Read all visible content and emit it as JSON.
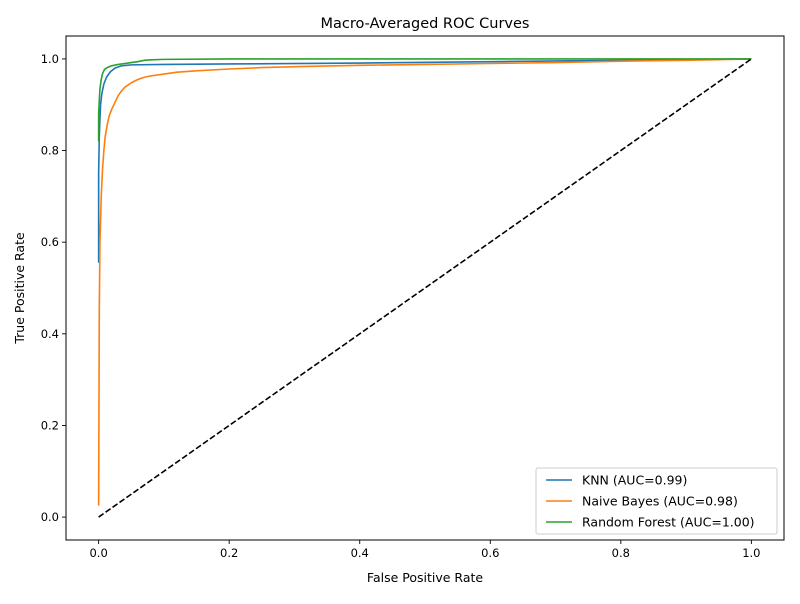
{
  "chart_data": {
    "type": "line",
    "title": "Macro-Averaged ROC Curves",
    "xlabel": "False Positive Rate",
    "ylabel": "True Positive Rate",
    "xlim": [
      -0.05,
      1.05
    ],
    "ylim": [
      -0.05,
      1.05
    ],
    "xticks": [
      0.0,
      0.2,
      0.4,
      0.6,
      0.8,
      1.0
    ],
    "yticks": [
      0.0,
      0.2,
      0.4,
      0.6,
      0.8,
      1.0
    ],
    "xtick_labels": [
      "0.0",
      "0.2",
      "0.4",
      "0.6",
      "0.8",
      "1.0"
    ],
    "ytick_labels": [
      "0.0",
      "0.2",
      "0.4",
      "0.6",
      "0.8",
      "1.0"
    ],
    "grid": false,
    "legend_position": "lower-right",
    "series": [
      {
        "name": "KNN (AUC=0.99)",
        "color": "#1f77b4",
        "x": [
          0.0,
          0.0,
          0.001,
          0.002,
          0.003,
          0.005,
          0.008,
          0.012,
          0.018,
          0.025,
          0.035,
          0.05,
          0.1,
          0.2,
          0.4,
          0.6,
          0.8,
          1.0
        ],
        "y": [
          0.555,
          0.75,
          0.83,
          0.87,
          0.9,
          0.925,
          0.945,
          0.96,
          0.972,
          0.98,
          0.985,
          0.987,
          0.988,
          0.989,
          0.991,
          0.994,
          0.997,
          1.0
        ]
      },
      {
        "name": "Naive Bayes (AUC=0.98)",
        "color": "#ff7f0e",
        "x": [
          0.0,
          0.001,
          0.002,
          0.004,
          0.006,
          0.008,
          0.01,
          0.013,
          0.016,
          0.02,
          0.025,
          0.03,
          0.035,
          0.04,
          0.05,
          0.06,
          0.07,
          0.08,
          0.1,
          0.12,
          0.15,
          0.2,
          0.25,
          0.3,
          0.4,
          0.5,
          0.6,
          0.7,
          0.8,
          0.9,
          1.0
        ],
        "y": [
          0.025,
          0.45,
          0.6,
          0.7,
          0.76,
          0.8,
          0.83,
          0.855,
          0.875,
          0.89,
          0.905,
          0.92,
          0.93,
          0.938,
          0.948,
          0.955,
          0.96,
          0.963,
          0.967,
          0.971,
          0.974,
          0.978,
          0.981,
          0.983,
          0.986,
          0.988,
          0.99,
          0.992,
          0.995,
          0.997,
          1.0
        ]
      },
      {
        "name": "Random Forest (AUC=1.00)",
        "color": "#2ca02c",
        "x": [
          0.0,
          0.0,
          0.001,
          0.002,
          0.004,
          0.006,
          0.009,
          0.013,
          0.02,
          0.03,
          0.04,
          0.05,
          0.06,
          0.07,
          0.08,
          0.1,
          0.2,
          0.4,
          0.6,
          0.8,
          1.0
        ],
        "y": [
          0.82,
          0.88,
          0.91,
          0.935,
          0.955,
          0.968,
          0.977,
          0.981,
          0.985,
          0.988,
          0.99,
          0.992,
          0.994,
          0.997,
          0.998,
          0.999,
          1.0,
          1.0,
          1.0,
          1.0,
          1.0
        ]
      },
      {
        "name": "",
        "color": "#000000",
        "style": "dashed",
        "x": [
          0.0,
          1.0
        ],
        "y": [
          0.0,
          1.0
        ]
      }
    ]
  }
}
